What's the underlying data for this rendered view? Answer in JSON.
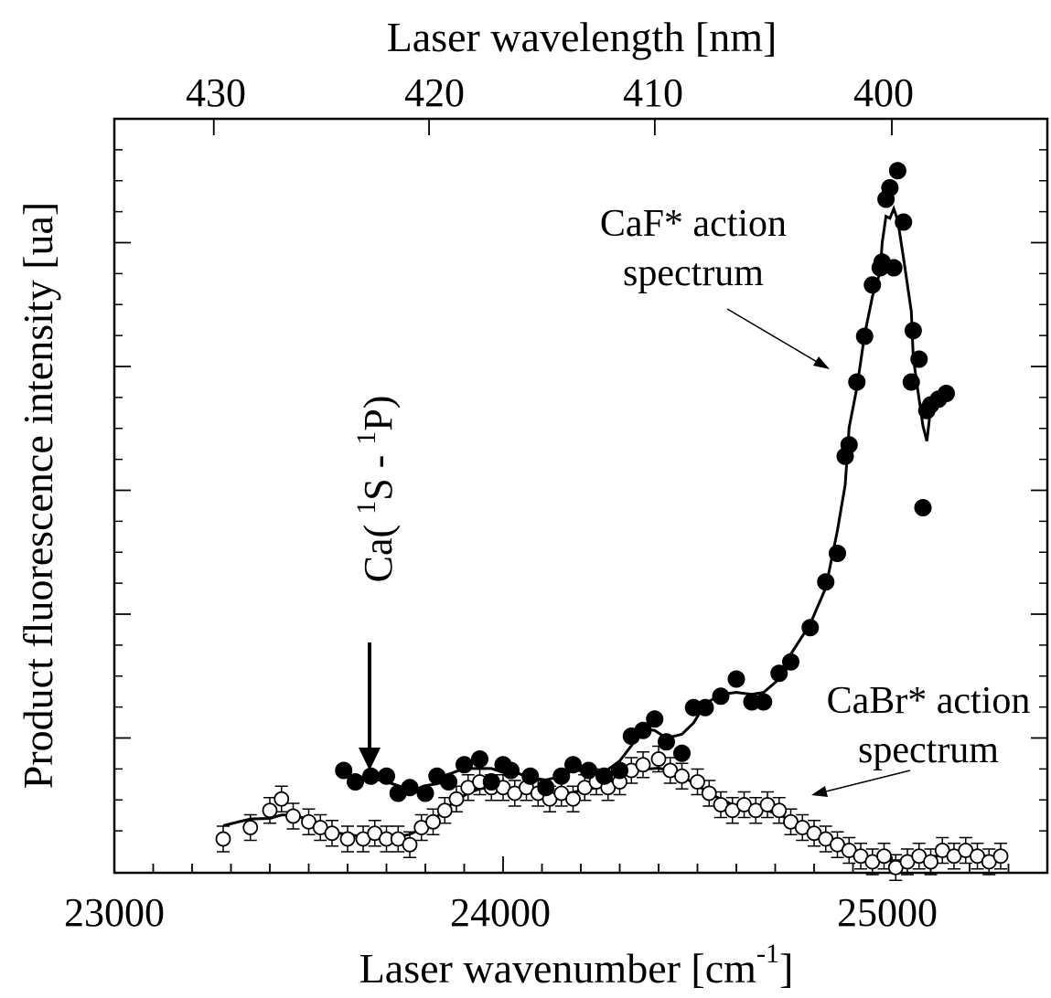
{
  "chart_data": {
    "type": "scatter",
    "xlabel_main": "Laser wavenumber [cm",
    "xlabel_sup": "-1",
    "xlabel_end": "]",
    "xlabel_top": "Laser wavelength [nm]",
    "ylabel": "Product  fluorescence intensity [ua]",
    "xlim": [
      23000,
      25400
    ],
    "x_ticks": [
      "23000",
      "24000",
      "25000"
    ],
    "top_ticks": [
      "430",
      "420",
      "410",
      "400"
    ],
    "y_tick_count": 6,
    "annotations": {
      "caf_line1": "CaF* action",
      "caf_line2": "spectrum",
      "cabr_line1": "CaBr* action",
      "cabr_line2": "spectrum",
      "ca_prefix": "Ca( ",
      "ca_sup1": "1",
      "ca_mid": "S - ",
      "ca_sup2": "1",
      "ca_suffix": "P)"
    },
    "series": [
      {
        "name": "CaF* action spectrum",
        "marker": "filled-circle",
        "points": [
          [
            23590,
            0.8
          ],
          [
            23620,
            0.7
          ],
          [
            23660,
            0.75
          ],
          [
            23700,
            0.75
          ],
          [
            23730,
            0.6
          ],
          [
            23760,
            0.65
          ],
          [
            23800,
            0.6
          ],
          [
            23830,
            0.75
          ],
          [
            23860,
            0.7
          ],
          [
            23900,
            0.85
          ],
          [
            23940,
            0.9
          ],
          [
            23970,
            0.7
          ],
          [
            24000,
            0.85
          ],
          [
            24020,
            0.8
          ],
          [
            24070,
            0.75
          ],
          [
            24110,
            0.65
          ],
          [
            24150,
            0.75
          ],
          [
            24180,
            0.85
          ],
          [
            24220,
            0.8
          ],
          [
            24260,
            0.75
          ],
          [
            24300,
            0.8
          ],
          [
            24330,
            1.1
          ],
          [
            24360,
            1.15
          ],
          [
            24390,
            1.25
          ],
          [
            24420,
            1.05
          ],
          [
            24460,
            0.95
          ],
          [
            24490,
            1.35
          ],
          [
            24520,
            1.35
          ],
          [
            24560,
            1.45
          ],
          [
            24600,
            1.6
          ],
          [
            24640,
            1.4
          ],
          [
            24670,
            1.4
          ],
          [
            24710,
            1.65
          ],
          [
            24740,
            1.75
          ],
          [
            24790,
            2.05
          ],
          [
            24830,
            2.45
          ],
          [
            24860,
            2.7
          ],
          [
            24880,
            3.55
          ],
          [
            24890,
            3.65
          ],
          [
            24910,
            4.2
          ],
          [
            24930,
            4.6
          ],
          [
            24950,
            5.05
          ],
          [
            24970,
            5.2
          ],
          [
            24975,
            5.25
          ],
          [
            24985,
            5.8
          ],
          [
            24995,
            5.9
          ],
          [
            25005,
            5.2
          ],
          [
            25015,
            6.05
          ],
          [
            25030,
            5.6
          ],
          [
            25050,
            4.2
          ],
          [
            25055,
            4.65
          ],
          [
            25070,
            4.4
          ],
          [
            25080,
            3.1
          ],
          [
            25090,
            3.95
          ],
          [
            25100,
            4.0
          ],
          [
            25120,
            4.05
          ],
          [
            25140,
            4.1
          ]
        ]
      },
      {
        "name": "CaBr* action spectrum",
        "marker": "open-circle",
        "points": [
          [
            23280,
            0.2
          ],
          [
            23350,
            0.3
          ],
          [
            23400,
            0.45
          ],
          [
            23430,
            0.55
          ],
          [
            23460,
            0.4
          ],
          [
            23500,
            0.35
          ],
          [
            23530,
            0.3
          ],
          [
            23560,
            0.25
          ],
          [
            23600,
            0.2
          ],
          [
            23640,
            0.2
          ],
          [
            23670,
            0.25
          ],
          [
            23700,
            0.2
          ],
          [
            23730,
            0.2
          ],
          [
            23760,
            0.15
          ],
          [
            23790,
            0.3
          ],
          [
            23820,
            0.35
          ],
          [
            23850,
            0.45
          ],
          [
            23880,
            0.55
          ],
          [
            23910,
            0.65
          ],
          [
            23940,
            0.7
          ],
          [
            23970,
            0.65
          ],
          [
            24000,
            0.65
          ],
          [
            24030,
            0.6
          ],
          [
            24060,
            0.65
          ],
          [
            24090,
            0.6
          ],
          [
            24120,
            0.55
          ],
          [
            24150,
            0.6
          ],
          [
            24180,
            0.55
          ],
          [
            24210,
            0.65
          ],
          [
            24240,
            0.7
          ],
          [
            24270,
            0.65
          ],
          [
            24300,
            0.7
          ],
          [
            24330,
            0.8
          ],
          [
            24360,
            0.85
          ],
          [
            24400,
            0.9
          ],
          [
            24430,
            0.8
          ],
          [
            24460,
            0.75
          ],
          [
            24500,
            0.7
          ],
          [
            24530,
            0.6
          ],
          [
            24560,
            0.5
          ],
          [
            24590,
            0.45
          ],
          [
            24620,
            0.5
          ],
          [
            24650,
            0.45
          ],
          [
            24680,
            0.5
          ],
          [
            24710,
            0.45
          ],
          [
            24740,
            0.35
          ],
          [
            24770,
            0.3
          ],
          [
            24800,
            0.25
          ],
          [
            24830,
            0.2
          ],
          [
            24860,
            0.15
          ],
          [
            24890,
            0.1
          ],
          [
            24920,
            0.05
          ],
          [
            24950,
            0.0
          ],
          [
            24980,
            0.05
          ],
          [
            25010,
            -0.05
          ],
          [
            25040,
            0.0
          ],
          [
            25070,
            0.05
          ],
          [
            25100,
            0.0
          ],
          [
            25130,
            0.1
          ],
          [
            25160,
            0.05
          ],
          [
            25190,
            0.1
          ],
          [
            25220,
            0.05
          ],
          [
            25250,
            0.0
          ],
          [
            25280,
            0.05
          ]
        ]
      }
    ]
  }
}
